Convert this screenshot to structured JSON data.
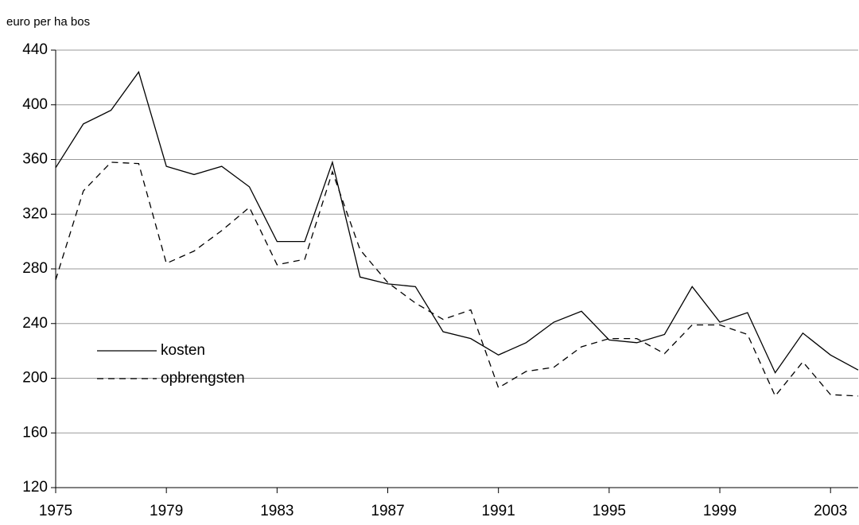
{
  "chart_data": {
    "type": "line",
    "y_label": "euro per ha bos",
    "x": [
      1975,
      1976,
      1977,
      1978,
      1979,
      1980,
      1981,
      1982,
      1983,
      1984,
      1985,
      1986,
      1987,
      1988,
      1989,
      1990,
      1991,
      1992,
      1993,
      1994,
      1995,
      1996,
      1997,
      1998,
      1999,
      2000,
      2001,
      2002,
      2003,
      2004
    ],
    "series": [
      {
        "name": "kosten",
        "color": "#000000",
        "dash": "none",
        "values": [
          354,
          386,
          396,
          424,
          355,
          349,
          355,
          340,
          300,
          300,
          358,
          274,
          269,
          267,
          234,
          229,
          217,
          226,
          241,
          249,
          228,
          226,
          232,
          267,
          241,
          248,
          204,
          233,
          217,
          206
        ]
      },
      {
        "name": "opbrengsten",
        "color": "#000000",
        "dash": "8,6",
        "values": [
          272,
          337,
          358,
          357,
          284,
          293,
          308,
          325,
          283,
          287,
          351,
          294,
          270,
          255,
          243,
          250,
          193,
          205,
          208,
          223,
          229,
          229,
          218,
          239,
          239,
          232,
          187,
          212,
          188,
          187
        ]
      }
    ],
    "xlim": [
      1975,
      2004
    ],
    "xticks": [
      1975,
      1979,
      1983,
      1987,
      1991,
      1995,
      1999,
      2003
    ],
    "ylim": [
      120,
      440
    ],
    "yticks": [
      120,
      160,
      200,
      240,
      280,
      320,
      360,
      400,
      440
    ],
    "grid": true,
    "legend": "left"
  }
}
